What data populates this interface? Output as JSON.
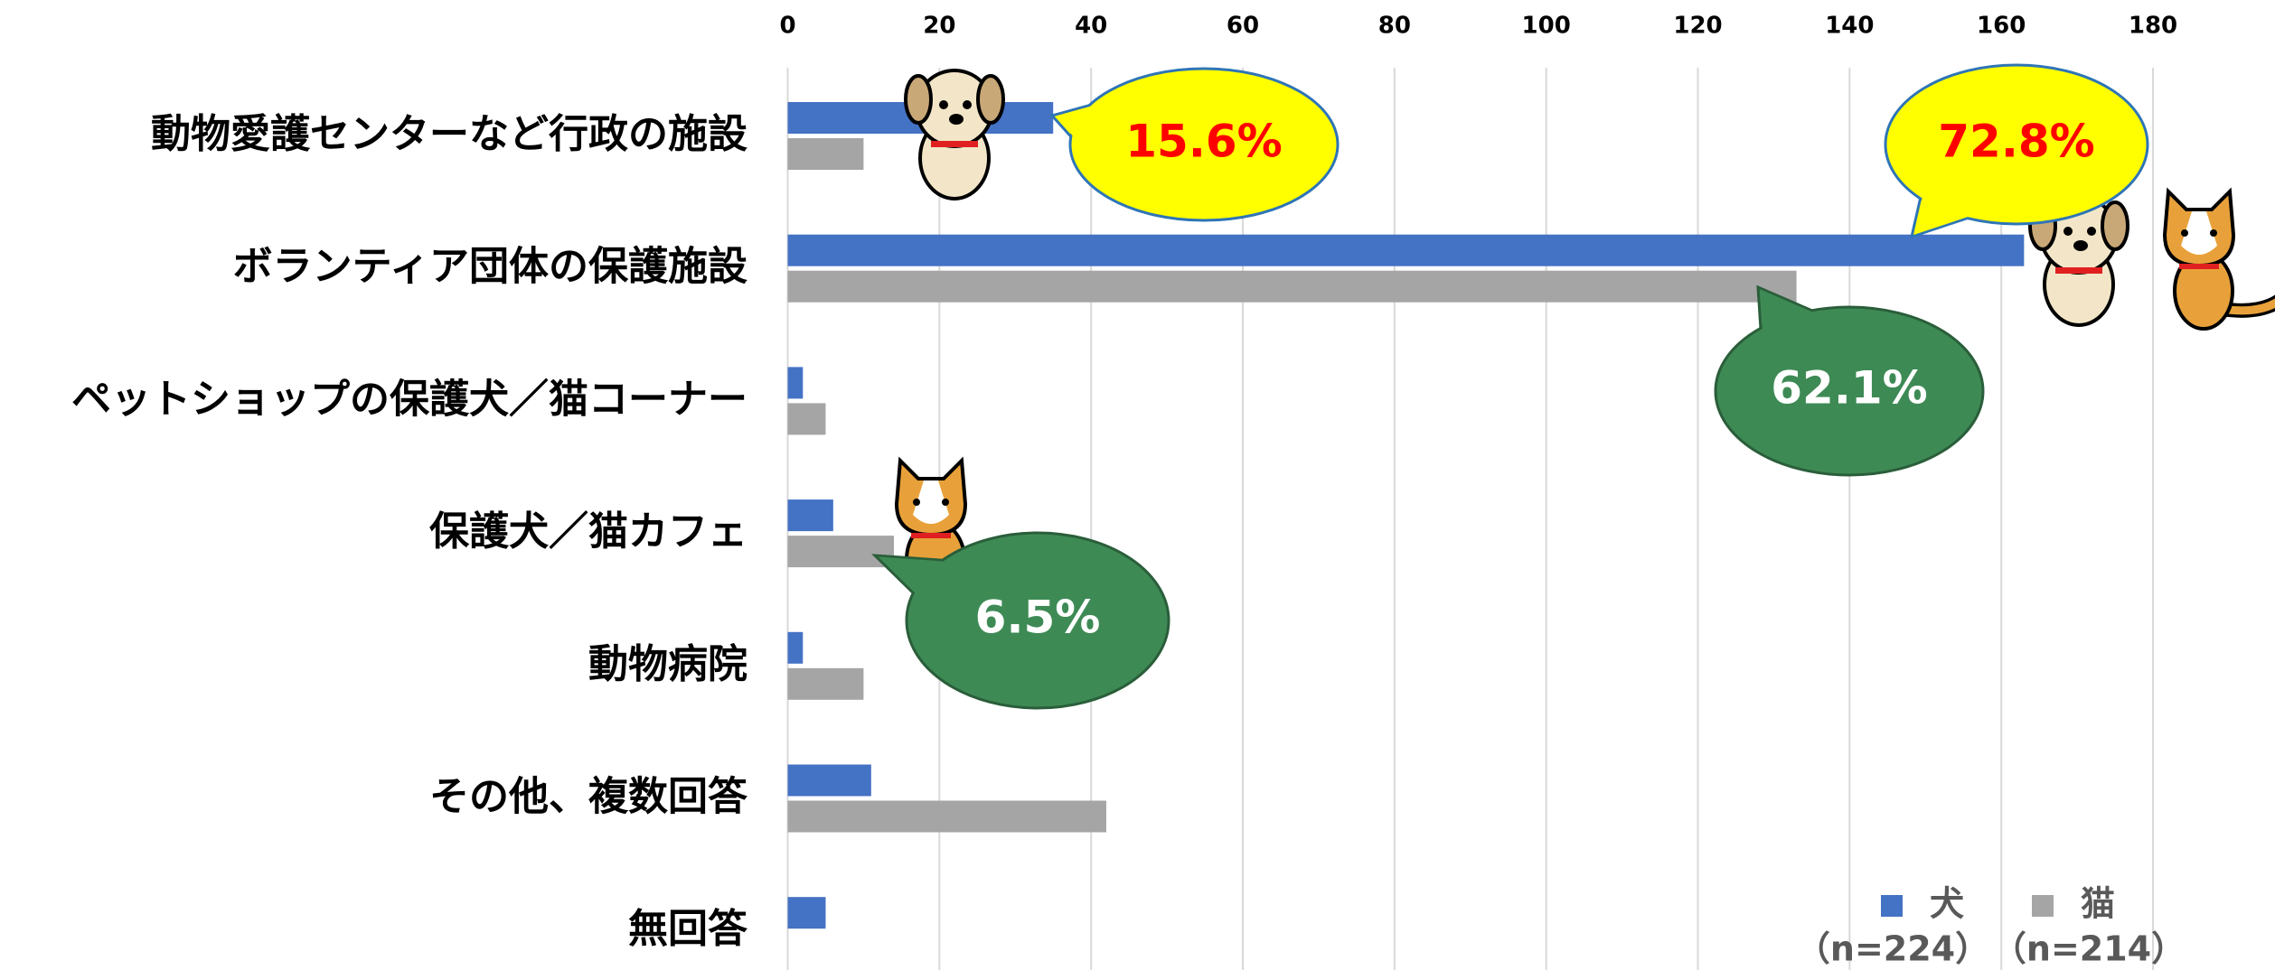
{
  "chart_data": {
    "type": "bar",
    "orientation": "horizontal",
    "categories": [
      "動物愛護センターなど行政の施設",
      "ボランティア団体の保護施設",
      "ペットショップの保護犬／猫コーナー",
      "保護犬／猫カフェ",
      "動物病院",
      "その他、複数回答",
      "無回答"
    ],
    "series": [
      {
        "name": "犬",
        "sample_label": "（n=224）",
        "color": "#4472c4",
        "values": [
          35,
          163,
          2,
          6,
          2,
          11,
          5
        ]
      },
      {
        "name": "猫",
        "sample_label": "（n=214）",
        "color": "#a5a5a5",
        "values": [
          10,
          133,
          5,
          14,
          10,
          42,
          0
        ]
      }
    ],
    "xlim": [
      0,
      196
    ],
    "xticks": [
      0,
      20,
      40,
      60,
      80,
      100,
      120,
      140,
      160,
      180
    ],
    "grid": true,
    "annotations": [
      {
        "text": "15.6%",
        "fill": "#ffff00",
        "text_color": "#ff0000"
      },
      {
        "text": "72.8%",
        "fill": "#ffff00",
        "text_color": "#ff0000"
      },
      {
        "text": "62.1%",
        "fill": "#3e8a55",
        "text_color": "#ffffff"
      },
      {
        "text": "6.5%",
        "fill": "#3e8a55",
        "text_color": "#ffffff"
      }
    ]
  }
}
